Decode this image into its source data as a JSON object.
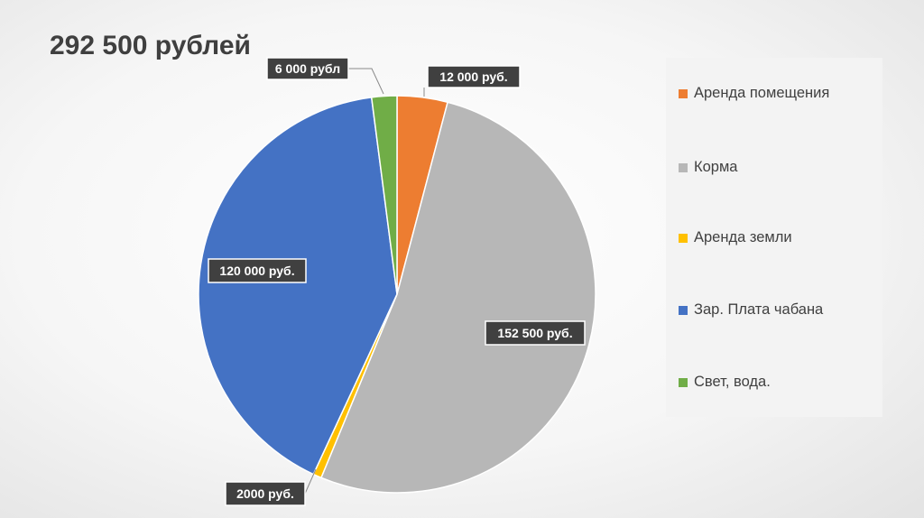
{
  "chart_data": {
    "type": "pie",
    "title": "292 500 рублей",
    "slices": [
      {
        "name": "Аренда помещения",
        "value": 12000,
        "label": "12 000 руб.",
        "color": "#ED7D31"
      },
      {
        "name": "Корма",
        "value": 152500,
        "label": "152 500 руб.",
        "color": "#B7B7B7"
      },
      {
        "name": "Аренда земли",
        "value": 2000,
        "label": "2000 руб.",
        "color": "#FFC000"
      },
      {
        "name": "Зар. Плата чабана",
        "value": 120000,
        "label": "120 000 руб.",
        "color": "#4472C4"
      },
      {
        "name": "Свет, вода.",
        "value": 6000,
        "label": "6 000 рубл",
        "color": "#70AD47"
      }
    ],
    "legend_position": "right"
  }
}
